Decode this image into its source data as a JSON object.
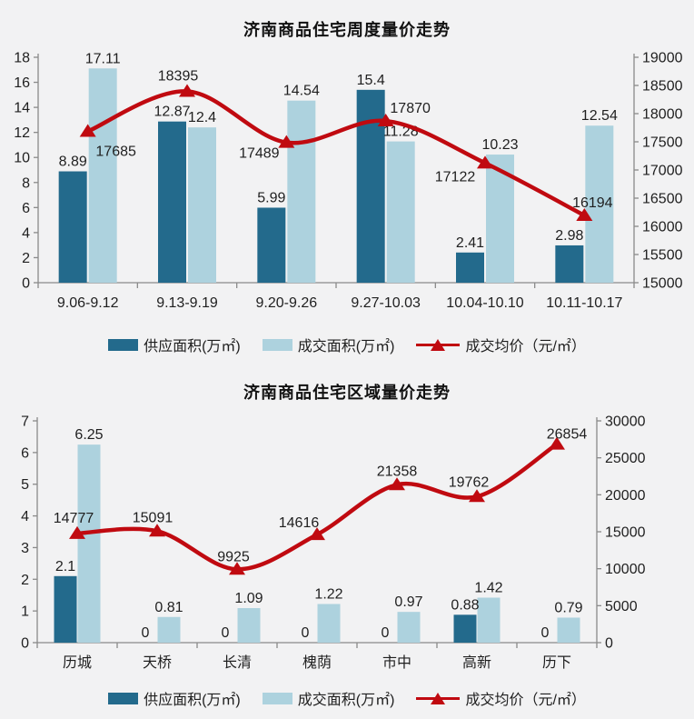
{
  "page": {
    "background": "#f2f2f3"
  },
  "colors": {
    "supply_bar": "#236a8c",
    "deal_bar": "#add2de",
    "price_line": "#c00a10",
    "axis": "#8a8a8a",
    "text": "#1f1f1f"
  },
  "chart_data": [
    {
      "type": "bar",
      "subtype": "bar+line-combo",
      "title": "济南商品住宅周度量价走势",
      "categories": [
        "9.06-9.12",
        "9.13-9.19",
        "9.20-9.26",
        "9.27-10.03",
        "10.04-10.10",
        "10.11-10.17"
      ],
      "series": [
        {
          "name": "供应面积(万㎡)",
          "type": "bar",
          "axis": "left",
          "values": [
            8.89,
            12.87,
            5.99,
            15.4,
            2.41,
            2.98
          ]
        },
        {
          "name": "成交面积(万㎡)",
          "type": "bar",
          "axis": "left",
          "values": [
            17.11,
            12.4,
            14.54,
            11.28,
            10.23,
            12.54
          ]
        },
        {
          "name": "成交均价（元/㎡）",
          "type": "line",
          "axis": "right",
          "values": [
            17685,
            18395,
            17489,
            17870,
            17122,
            16194
          ]
        }
      ],
      "left_axis": {
        "min": 0,
        "max": 18,
        "step": 2
      },
      "right_axis": {
        "min": 15000,
        "max": 19000,
        "step": 500
      },
      "grid": false,
      "legend_position": "bottom",
      "data_labels": true
    },
    {
      "type": "bar",
      "subtype": "bar+line-combo",
      "title": "济南商品住宅区域量价走势",
      "categories": [
        "历城",
        "天桥",
        "长清",
        "槐荫",
        "市中",
        "高新",
        "历下"
      ],
      "series": [
        {
          "name": "供应面积(万㎡)",
          "type": "bar",
          "axis": "left",
          "values": [
            2.1,
            0,
            0,
            0,
            0,
            0.88,
            0
          ]
        },
        {
          "name": "成交面积(万㎡)",
          "type": "bar",
          "axis": "left",
          "values": [
            6.25,
            0.81,
            1.09,
            1.22,
            0.97,
            1.42,
            0.79
          ]
        },
        {
          "name": "成交均价（元/㎡）",
          "type": "line",
          "axis": "right",
          "values": [
            14777,
            15091,
            9925,
            14616,
            21358,
            19762,
            26854
          ]
        }
      ],
      "left_axis": {
        "min": 0,
        "max": 7,
        "step": 1
      },
      "right_axis": {
        "min": 0,
        "max": 30000,
        "step": 5000
      },
      "grid": false,
      "legend_position": "bottom",
      "data_labels": true
    }
  ]
}
